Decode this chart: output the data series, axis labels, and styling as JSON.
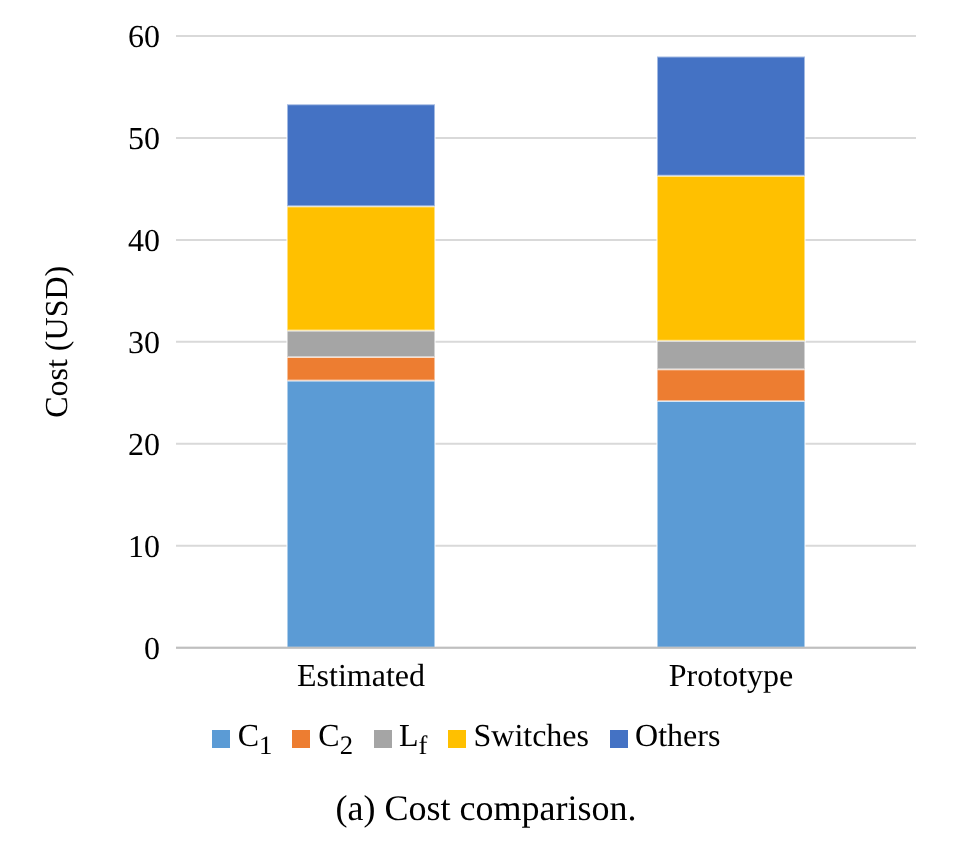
{
  "chart_data": {
    "type": "bar",
    "title": "(a) Cost comparison.",
    "ylabel": "Cost (USD)",
    "categories": [
      "Estimated",
      "Prototype"
    ],
    "stacked": true,
    "series": [
      {
        "name": "C$_{1}$",
        "color": "#5b9bd5",
        "values": [
          26.2,
          24.2
        ]
      },
      {
        "name": "C$_{2}$",
        "color": "#ed7d31",
        "values": [
          2.3,
          3.1
        ]
      },
      {
        "name": "L$_{f}$",
        "color": "#a5a5a5",
        "values": [
          2.6,
          2.8
        ]
      },
      {
        "name": "Switches",
        "color": "#ffc000",
        "values": [
          12.2,
          16.2
        ]
      },
      {
        "name": "Others",
        "color": "#4472c4",
        "values": [
          10,
          11.7
        ]
      }
    ],
    "ylim": [
      0,
      60
    ],
    "yticks": [
      0,
      10,
      20,
      30,
      40,
      50,
      60
    ],
    "grid": "y",
    "legend": "bottom"
  }
}
